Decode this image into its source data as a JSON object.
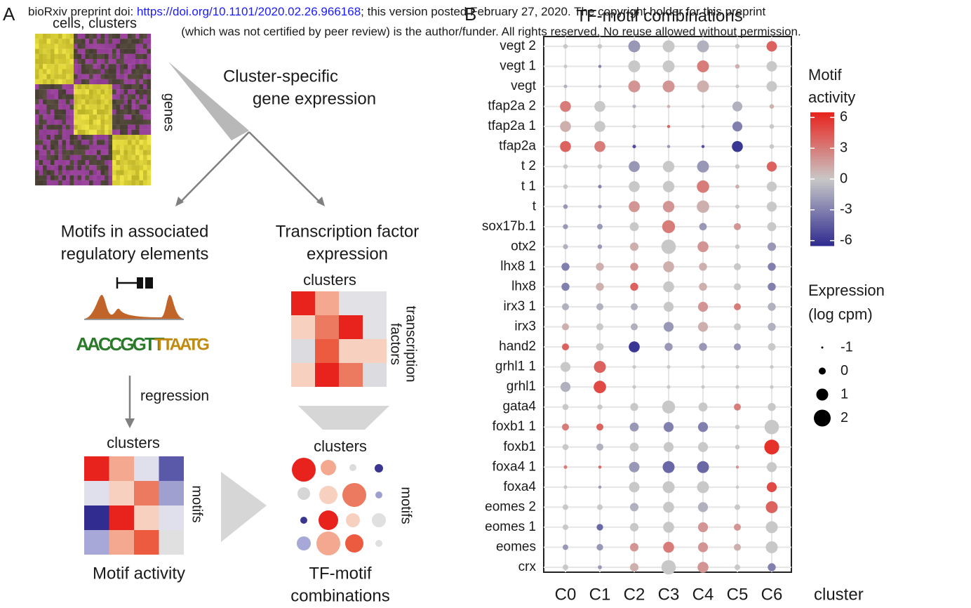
{
  "header": {
    "line1_a": "bioRxiv preprint doi: ",
    "line1_link": "https://doi.org/10.1101/2020.02.26.966168",
    "line1_b": "; this version posted February 27, 2020. The copyright holder for this preprint",
    "line2": "(which was not certified by peer review) is the author/funder. All rights reserved. No reuse allowed without permission."
  },
  "panel_a": {
    "label": "A",
    "cells_clusters": "cells, clusters",
    "genes": "genes",
    "cluster_specific_1": "Cluster-specific",
    "cluster_specific_2": "gene expression",
    "motifs_1": "Motifs in associated",
    "motifs_2": "regulatory elements",
    "tf_1": "Transcription factor",
    "tf_2": "expression",
    "tf_clusters": "clusters",
    "tf_rows_1": "transcription",
    "tf_rows_2": "factors",
    "logo_1": "AACCGGTT",
    "logo_2": "TTAATG",
    "regression": "regression",
    "act_clusters": "clusters",
    "act_rows": "motifs",
    "act_title": "Motif activity",
    "comb_clusters": "clusters",
    "comb_rows": "motifs",
    "comb_title_1": "TF-motif",
    "comb_title_2": "combinations"
  },
  "chart_data": {
    "type": "dotplot",
    "panel_label": "B",
    "title": "TF-motif combinations",
    "x_label": "cluster",
    "categories": [
      "C0",
      "C1",
      "C2",
      "C3",
      "C4",
      "C5",
      "C6"
    ],
    "rows": [
      "vegt 2",
      "vegt 1",
      "vegt",
      "tfap2a 2",
      "tfap2a 1",
      "tfap2a",
      "t 2",
      "t 1",
      "t",
      "sox17b.1",
      "otx2",
      "lhx8 1",
      "lhx8",
      "irx3 1",
      "irx3",
      "hand2",
      "grhl1 1",
      "grhl1",
      "gata4",
      "foxb1 1",
      "foxb1",
      "foxa4 1",
      "foxa4",
      "eomes 2",
      "eomes 1",
      "eomes",
      "crx"
    ],
    "activity": [
      [
        0,
        0,
        -2,
        0,
        -1,
        0,
        4
      ],
      [
        0,
        -3,
        0,
        0,
        3,
        1,
        0
      ],
      [
        -1,
        -1,
        2,
        2,
        1,
        0,
        0
      ],
      [
        3,
        0,
        -1,
        1,
        0,
        -1,
        1
      ],
      [
        1,
        0,
        0,
        4,
        0,
        -3,
        0
      ],
      [
        4,
        3,
        -5,
        -2,
        -5,
        -6,
        0
      ],
      [
        0,
        0,
        -2,
        0,
        -2,
        0,
        4
      ],
      [
        0,
        -3,
        0,
        0,
        3,
        1,
        0
      ],
      [
        -2,
        -2,
        2,
        2,
        1,
        0,
        0
      ],
      [
        -2,
        -2,
        0,
        3,
        -2,
        2,
        0
      ],
      [
        -1,
        -2,
        1,
        0,
        2,
        0,
        -2
      ],
      [
        -3,
        1,
        2,
        1,
        1,
        0,
        -3
      ],
      [
        -3,
        1,
        4,
        0,
        1,
        0,
        -3
      ],
      [
        -1,
        -1,
        -1,
        0,
        2,
        3,
        -1
      ],
      [
        1,
        0,
        -1,
        -2,
        1,
        0,
        -1
      ],
      [
        4,
        0,
        -6,
        -2,
        -2,
        -2,
        0
      ],
      [
        0,
        4,
        0,
        0,
        0,
        0,
        0
      ],
      [
        -1,
        5,
        0,
        0,
        0,
        0,
        0
      ],
      [
        0,
        0,
        0,
        0,
        0,
        3,
        0
      ],
      [
        3,
        4,
        -2,
        -3,
        -3,
        0,
        0
      ],
      [
        0,
        -1,
        0,
        0,
        0,
        0,
        6
      ],
      [
        3,
        4,
        -2,
        -4,
        -4,
        2,
        0
      ],
      [
        0,
        -2,
        0,
        0,
        0,
        0,
        5
      ],
      [
        0,
        0,
        -1,
        0,
        -1,
        0,
        4
      ],
      [
        0,
        -4,
        0,
        0,
        2,
        2,
        0
      ],
      [
        -2,
        -2,
        2,
        3,
        2,
        1,
        0
      ],
      [
        0,
        -2,
        1,
        0,
        2,
        0,
        -3
      ]
    ],
    "expression": [
      [
        -0.5,
        -0.5,
        1,
        1,
        1,
        -0.5,
        0.7
      ],
      [
        -0.7,
        -0.8,
        1,
        1,
        1,
        -0.5,
        0.7
      ],
      [
        -0.7,
        -0.8,
        1,
        1,
        1,
        -0.7,
        0.7
      ],
      [
        0.8,
        0.8,
        -0.7,
        -0.8,
        -0.8,
        0.6,
        -0.5
      ],
      [
        0.8,
        0.8,
        -0.7,
        -0.8,
        -0.8,
        0.6,
        -0.5
      ],
      [
        0.8,
        0.8,
        -0.7,
        -0.8,
        -0.8,
        0.8,
        -0.5
      ],
      [
        -0.5,
        -0.5,
        0.8,
        0.9,
        1,
        -0.5,
        0.6
      ],
      [
        -0.5,
        -0.7,
        0.8,
        0.9,
        1.1,
        -0.6,
        0.6
      ],
      [
        -0.5,
        -0.7,
        0.8,
        0.9,
        1.1,
        -0.6,
        0.6
      ],
      [
        -0.4,
        -0.3,
        0.4,
        1.2,
        0.1,
        0,
        0.4
      ],
      [
        -0.4,
        -0.5,
        0.3,
        1.5,
        0.8,
        -0.5,
        0.3
      ],
      [
        0.2,
        0.2,
        0.2,
        0.8,
        0.2,
        0,
        0.2
      ],
      [
        0.2,
        0.2,
        0.2,
        0.8,
        0.2,
        0,
        0.2
      ],
      [
        0,
        0,
        0,
        0.6,
        0.6,
        0,
        0.2
      ],
      [
        0,
        0,
        0,
        0.6,
        0.6,
        0,
        0.2
      ],
      [
        0,
        0.1,
        0.8,
        0.2,
        0.2,
        0,
        0.1
      ],
      [
        0.6,
        1,
        -0.7,
        -0.7,
        -0.7,
        -0.7,
        -0.7
      ],
      [
        0.6,
        1.1,
        -0.7,
        -0.7,
        -0.7,
        -0.7,
        -0.7
      ],
      [
        -0.2,
        -0.4,
        0.2,
        1.2,
        0.4,
        0,
        0.2
      ],
      [
        0,
        0,
        0.4,
        0.6,
        0.6,
        -0.5,
        1.5
      ],
      [
        -0.2,
        0,
        0.4,
        0.6,
        0.6,
        -0.5,
        1.6
      ],
      [
        -0.7,
        -0.8,
        0.7,
        1,
        1,
        -0.8,
        0.6
      ],
      [
        -0.7,
        -0.8,
        0.7,
        1,
        1,
        -0.8,
        0.6
      ],
      [
        -0.3,
        -0.3,
        0.3,
        0.8,
        0.6,
        -0.3,
        1
      ],
      [
        -0.3,
        -0.1,
        0.3,
        0.8,
        0.6,
        0,
        1
      ],
      [
        -0.3,
        -0.1,
        0.3,
        0.8,
        0.6,
        0,
        1
      ],
      [
        -0.3,
        -0.6,
        0.3,
        1.5,
        0.8,
        -0.3,
        0.2
      ]
    ],
    "palette": [
      "#2e2a8f",
      "#c8c8c8",
      "#e8231d"
    ],
    "color_legend_title_1": "Motif",
    "color_legend_title_2": "activity",
    "clim": [
      -6.5,
      6.5
    ],
    "cticks": [
      6,
      3,
      0,
      -3,
      -6
    ],
    "size_legend_title_1": "Expression",
    "size_legend_title_2": "(log cpm)",
    "size_legend": [
      -1,
      0,
      1,
      2
    ],
    "grid": true
  }
}
